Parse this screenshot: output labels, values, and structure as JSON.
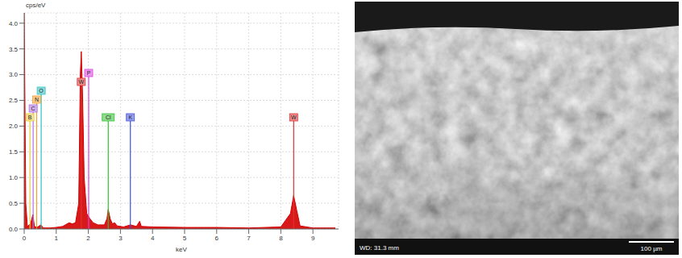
{
  "chart_data": {
    "type": "area",
    "y_label": "cps/eV",
    "x_label": "keV",
    "color": "#d40000",
    "x": [
      0.0,
      0.05,
      0.1,
      0.2,
      0.27,
      0.32,
      0.4,
      0.52,
      0.6,
      0.8,
      1.0,
      1.2,
      1.4,
      1.5,
      1.6,
      1.7,
      1.75,
      1.78,
      1.82,
      1.87,
      1.95,
      2.05,
      2.15,
      2.3,
      2.5,
      2.58,
      2.62,
      2.68,
      2.75,
      2.82,
      2.9,
      3.1,
      3.31,
      3.5,
      3.6,
      3.65,
      4.0,
      5.0,
      6.0,
      7.0,
      8.0,
      8.3,
      8.4,
      8.5,
      8.6,
      9.0,
      9.5,
      9.7
    ],
    "values": [
      4.2,
      0.5,
      0.05,
      0.1,
      0.28,
      0.05,
      0.03,
      0.08,
      0.02,
      0.02,
      0.03,
      0.05,
      0.12,
      0.1,
      0.12,
      0.5,
      3.0,
      3.45,
      2.6,
      1.0,
      0.3,
      0.2,
      0.12,
      0.08,
      0.08,
      0.2,
      0.38,
      0.2,
      0.1,
      0.12,
      0.06,
      0.04,
      0.08,
      0.05,
      0.15,
      0.05,
      0.04,
      0.03,
      0.03,
      0.02,
      0.04,
      0.3,
      0.65,
      0.35,
      0.06,
      0.02,
      0.02,
      0.02
    ],
    "xlim": [
      0,
      9.8
    ],
    "xticks": [
      0,
      1,
      2,
      3,
      4,
      5,
      6,
      7,
      8,
      9
    ],
    "ylim": [
      0,
      4.2
    ],
    "yticks": [
      {
        "value": 0,
        "label": "0.0"
      },
      {
        "value": 0.5,
        "label": "0.5"
      },
      {
        "value": 1,
        "label": "1.0"
      },
      {
        "value": 1.5,
        "label": "1.5"
      },
      {
        "value": 2,
        "label": "2.0"
      },
      {
        "value": 2.5,
        "label": "2.5"
      },
      {
        "value": 3,
        "label": "3.0"
      },
      {
        "value": 3.5,
        "label": "3.5"
      },
      {
        "value": 4,
        "label": "4.0"
      }
    ],
    "grid": true,
    "annotations": [
      {
        "text": "B",
        "x": 0.18,
        "color": "#e8c840"
      },
      {
        "text": "C",
        "x": 0.28,
        "color": "#b070e0"
      },
      {
        "text": "N",
        "x": 0.39,
        "color": "#f0a030"
      },
      {
        "text": "O",
        "x": 0.53,
        "color": "#30c0c0"
      },
      {
        "text": "W",
        "x": 1.78,
        "color": "#e03030"
      },
      {
        "text": "P",
        "x": 2.01,
        "color": "#e040e0"
      },
      {
        "text": "Cl",
        "x": 2.62,
        "color": "#30c030"
      },
      {
        "text": "K",
        "x": 3.31,
        "color": "#4050e0"
      },
      {
        "text": "W",
        "x": 8.4,
        "color": "#e03030"
      }
    ]
  },
  "image": {
    "caption": "WD: 31.3 mm",
    "scale_bar": "100 µm"
  }
}
